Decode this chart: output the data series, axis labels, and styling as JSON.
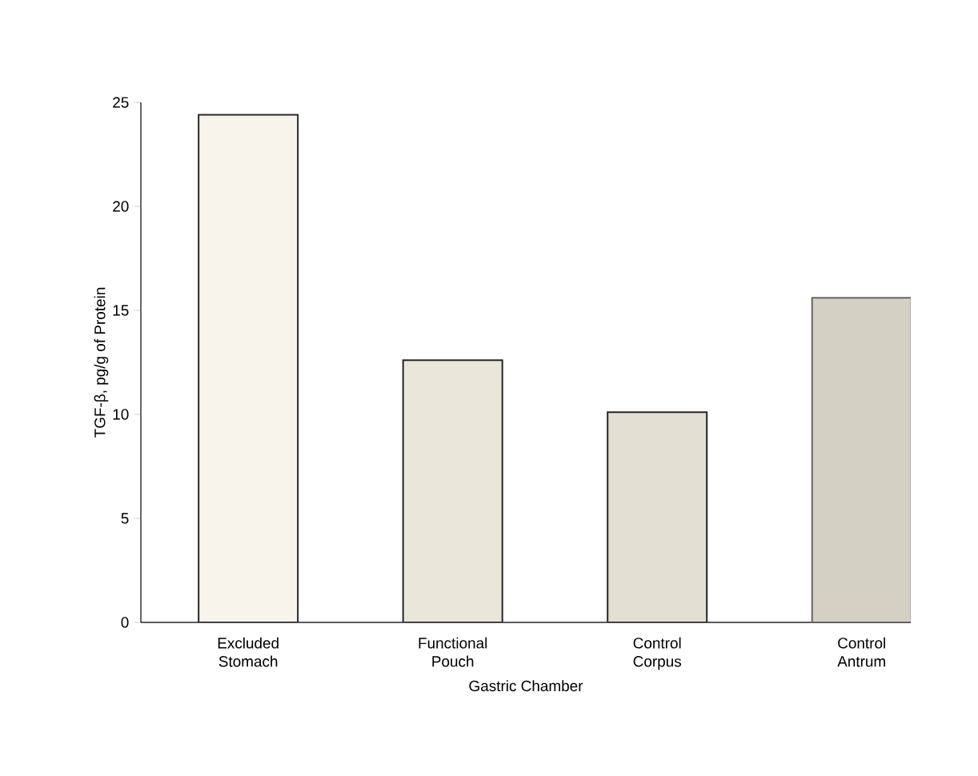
{
  "chart_data": {
    "type": "bar",
    "xlabel": "Gastric Chamber",
    "ylabel": "TGF-β, pg/g of Protein",
    "categories": [
      "Excluded Stomach",
      "Functional Pouch",
      "Control Corpus",
      "Control Antrum"
    ],
    "values": [
      24.4,
      12.6,
      10.1,
      15.6
    ],
    "colors": [
      "#f8f4ec",
      "#e9e6da",
      "#e2dfd3",
      "#d4d0c4"
    ],
    "ylim": [
      0,
      25
    ],
    "yticks": [
      0,
      5,
      10,
      15,
      20,
      25
    ],
    "grid": false
  }
}
